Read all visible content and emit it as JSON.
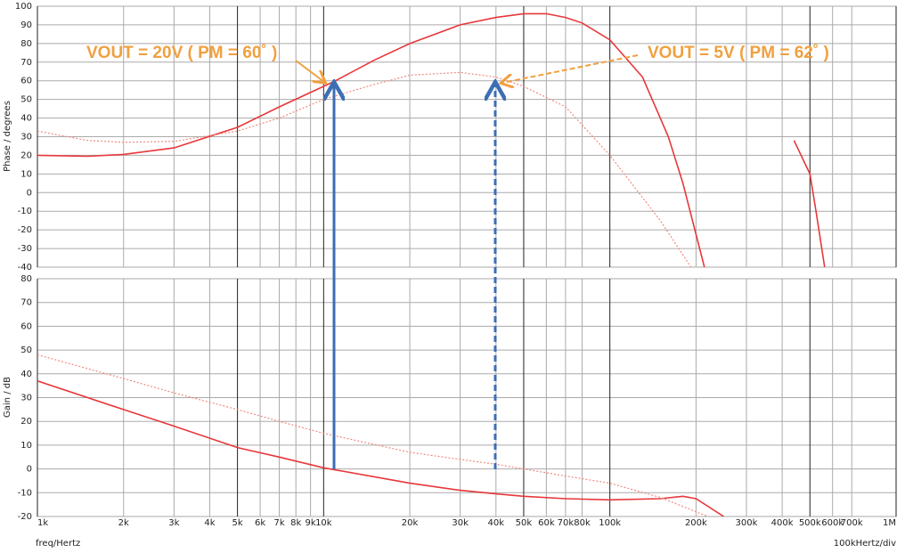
{
  "chart_data": {
    "type": "line",
    "xscale": "log",
    "xlabel": "freq/Hertz",
    "x_scale_note": "100kHertz/div",
    "xlim": [
      1000,
      1000000
    ],
    "xticks": [
      {
        "value": 1000,
        "label": "1k"
      },
      {
        "value": 2000,
        "label": "2k"
      },
      {
        "value": 3000,
        "label": "3k"
      },
      {
        "value": 4000,
        "label": "4k"
      },
      {
        "value": 5000,
        "label": "5k"
      },
      {
        "value": 6000,
        "label": "6k"
      },
      {
        "value": 7000,
        "label": "7k"
      },
      {
        "value": 8000,
        "label": "8k"
      },
      {
        "value": 9000,
        "label": "9k"
      },
      {
        "value": 10000,
        "label": "10k"
      },
      {
        "value": 20000,
        "label": "20k"
      },
      {
        "value": 30000,
        "label": "30k"
      },
      {
        "value": 40000,
        "label": "40k"
      },
      {
        "value": 50000,
        "label": "50k"
      },
      {
        "value": 60000,
        "label": "60k"
      },
      {
        "value": 70000,
        "label": "70k"
      },
      {
        "value": 80000,
        "label": "80k"
      },
      {
        "value": 100000,
        "label": "100k"
      },
      {
        "value": 200000,
        "label": "200k"
      },
      {
        "value": 300000,
        "label": "300k"
      },
      {
        "value": 400000,
        "label": "400k"
      },
      {
        "value": 500000,
        "label": "500k"
      },
      {
        "value": 600000,
        "label": "600k"
      },
      {
        "value": 700000,
        "label": "700k"
      },
      {
        "value": 1000000,
        "label": "1M"
      }
    ],
    "grid": true,
    "panels": [
      {
        "ylabel": "Phase / degrees",
        "ylim": [
          -40,
          100
        ],
        "yticks": [
          -40,
          -30,
          -20,
          -10,
          0,
          10,
          20,
          30,
          40,
          50,
          60,
          70,
          80,
          90,
          100
        ],
        "series": [
          {
            "style": "solid",
            "color": "#e8373a",
            "x": [
              1000,
              1500,
              2000,
              3000,
              5000,
              7000,
              10000,
              11000,
              15000,
              20000,
              30000,
              40000,
              50000,
              60000,
              70000,
              80000,
              100000,
              130000,
              160000,
              180000,
              214000,
              423000,
              440000,
              500000,
              525000,
              563000
            ],
            "values": [
              20,
              19.5,
              20.5,
              24,
              35,
              46,
              57,
              60,
              71,
              80,
              90,
              94,
              96,
              96,
              94,
              91,
              82,
              62,
              30,
              5,
              -40,
              null,
              28,
              10,
              -10,
              -40
            ]
          },
          {
            "style": "dotted",
            "color": "#f08a80",
            "x": [
              1000,
              1500,
              2000,
              3000,
              5000,
              7000,
              10000,
              15000,
              20000,
              30000,
              40000,
              50000,
              70000,
              100000,
              150000,
              192000
            ],
            "values": [
              33,
              28,
              27,
              27.5,
              33,
              40,
              50,
              58,
              63,
              64.5,
              62,
              57,
              46,
              20,
              -15,
              -40
            ]
          }
        ]
      },
      {
        "ylabel": "Gain / dB",
        "ylim": [
          -20,
          80
        ],
        "yticks": [
          -20,
          -10,
          0,
          10,
          20,
          30,
          40,
          50,
          60,
          70,
          80
        ],
        "series": [
          {
            "style": "solid",
            "color": "#e8373a",
            "x": [
              1000,
              2000,
              3000,
              5000,
              7000,
              10000,
              20000,
              30000,
              40000,
              50000,
              70000,
              100000,
              150000,
              180000,
              200000,
              250000
            ],
            "values": [
              37,
              25,
              18,
              9,
              5,
              0.5,
              -6,
              -9,
              -10.5,
              -11.5,
              -12.5,
              -13,
              -12.5,
              -11.5,
              -12.5,
              -20
            ]
          },
          {
            "style": "dotted",
            "color": "#f08a80",
            "x": [
              1000,
              2000,
              3000,
              5000,
              7000,
              10000,
              20000,
              30000,
              40000,
              50000,
              70000,
              100000,
              150000,
              200000,
              220000
            ],
            "values": [
              48,
              38,
              32,
              25,
              20,
              15,
              7,
              4,
              2,
              0,
              -3,
              -6,
              -12,
              -18,
              -20
            ]
          }
        ]
      }
    ],
    "annotations": [
      "VOUT = 20V ( PM = 60˚ )",
      "VOUT = 5V ( PM = 62˚ )"
    ]
  }
}
